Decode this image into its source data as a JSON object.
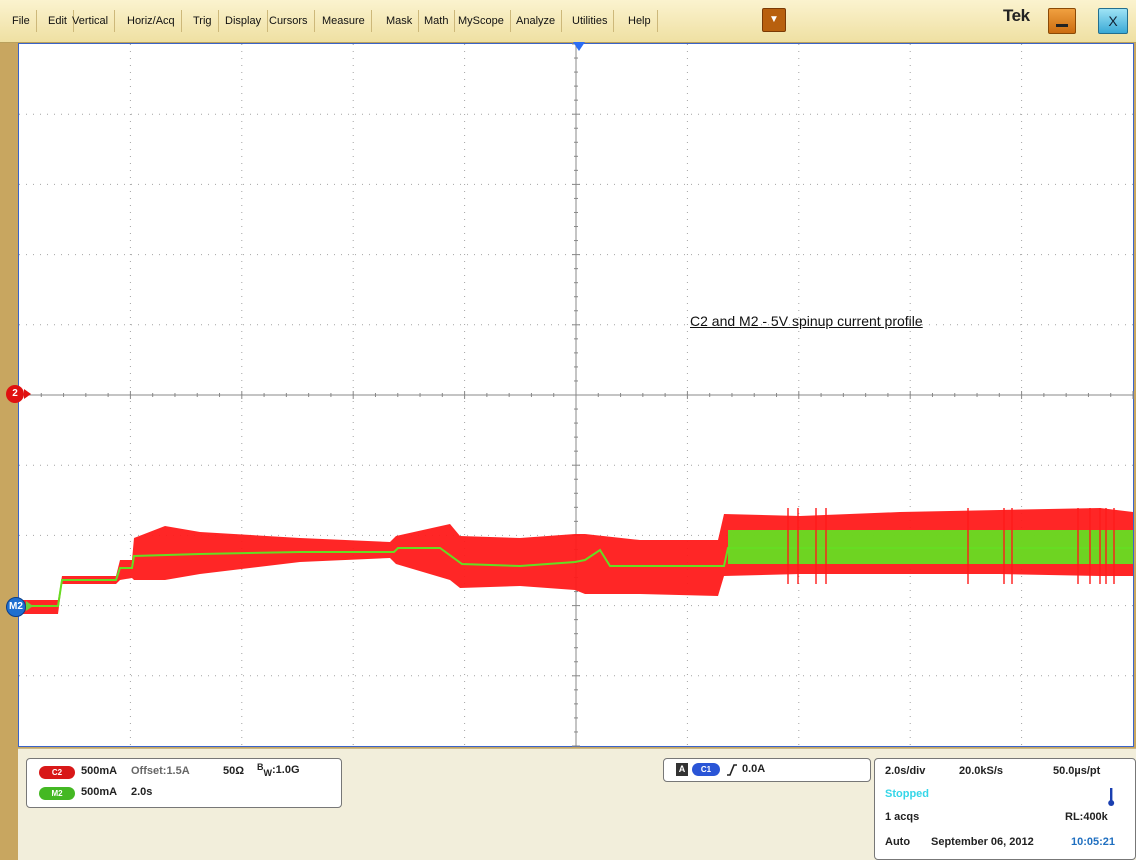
{
  "menu": {
    "items": [
      "File",
      "Edit",
      "Vertical",
      "Horiz/Acq",
      "Trig",
      "Display",
      "Cursors",
      "Measure",
      "Mask",
      "Math",
      "MyScope",
      "Analyze",
      "Utilities",
      "Help"
    ],
    "dropdown_icon": "chevron-down-icon",
    "brand": "Tek",
    "minimize_icon": "minimize-icon",
    "close_label": "X"
  },
  "display": {
    "annotation": "C2 and M2 - 5V spinup current profile",
    "c2_marker_label": "2",
    "m2_marker_label": "M2",
    "colors": {
      "c2": "#ff1a1a",
      "m2": "#66dd22",
      "grid": "#9a9a9a",
      "frame": "#3a63c8"
    }
  },
  "channels": {
    "c2": {
      "badge": "C2",
      "scale": "500mA",
      "offset": "Offset:1.5A",
      "impedance": "50Ω",
      "bw_prefix": "B",
      "bw_sub": "W",
      "bw_value": ":1.0G"
    },
    "m2": {
      "badge": "M2",
      "scale": "500mA",
      "time": "2.0s"
    }
  },
  "trigger": {
    "mode_badge": "A",
    "source": "C1",
    "slope_icon": "rising-edge-icon",
    "level": "0.0A"
  },
  "timebase": {
    "scale": "2.0s/div",
    "sample_rate": "20.0kS/s",
    "resolution": "50.0µs/pt",
    "state": "Stopped",
    "acqs": "1 acqs",
    "record_length": "RL:400k",
    "trigger_mode": "Auto",
    "date": "September 06, 2012",
    "time": "10:05:21",
    "status_icon": "thermometer-icon"
  }
}
